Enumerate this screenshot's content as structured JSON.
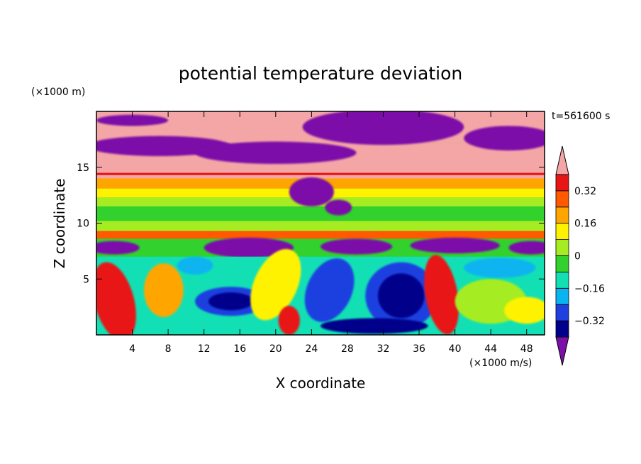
{
  "chart_data": {
    "type": "heatmap",
    "title": "potential temperature deviation",
    "xlabel": "X coordinate",
    "ylabel": "Z coordinate",
    "x_unit": "(×1000 m/s)",
    "y_unit": "(×1000 m)",
    "time_label": "t=561600 s",
    "xlim": [
      0,
      50
    ],
    "ylim": [
      0,
      20
    ],
    "x_ticks": [
      4,
      8,
      12,
      16,
      20,
      24,
      28,
      32,
      36,
      40,
      44,
      48
    ],
    "y_ticks": [
      5,
      10,
      15
    ],
    "colorbar": {
      "levels": [
        -0.4,
        -0.32,
        -0.24,
        -0.16,
        -0.08,
        0,
        0.08,
        0.16,
        0.24,
        0.32,
        0.4
      ],
      "colors": [
        "#7b0fa8",
        "#00008b",
        "#1f3fe0",
        "#0ab4f0",
        "#12e0b4",
        "#32d12e",
        "#a6ec22",
        "#fff200",
        "#ffa500",
        "#ff5a00",
        "#e81515",
        "#f4a6a6"
      ],
      "tick_labels": [
        "0.32",
        "0.16",
        "0",
        "−0.16",
        "−0.32"
      ],
      "tick_values": [
        0.32,
        0.16,
        0,
        -0.16,
        -0.32
      ],
      "extend": "both"
    },
    "grid": false
  }
}
